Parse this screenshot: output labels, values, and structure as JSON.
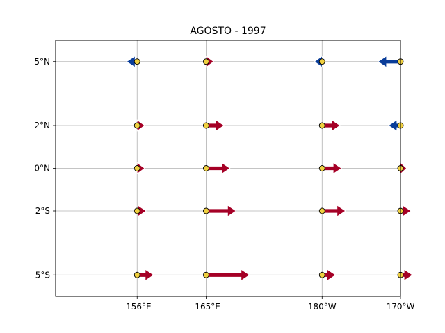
{
  "chart_data": {
    "type": "quiver",
    "title": "AGOSTO - 1997",
    "xlabel": "",
    "ylabel": "",
    "grid": true,
    "xlim": [
      -159,
      -148
    ],
    "ylim": [
      -6,
      6
    ],
    "x_ticks": [
      {
        "value": -156.4,
        "label": "-156°E"
      },
      {
        "value": -154.2,
        "label": "-165°E"
      },
      {
        "value": -150.5,
        "label": "180°W"
      },
      {
        "value": -148,
        "label": "170°W"
      }
    ],
    "y_ticks": [
      {
        "value": 5,
        "label": "5°N"
      },
      {
        "value": 2,
        "label": "2°N"
      },
      {
        "value": 0,
        "label": "0°N"
      },
      {
        "value": -2,
        "label": "2°S"
      },
      {
        "value": -5,
        "label": "5°S"
      }
    ],
    "colors": {
      "eastward": "#a50026",
      "westward": "#0a3d99",
      "station_marker": "#f0d040",
      "grid": "#b0b0b0"
    },
    "vectors": [
      {
        "x": -156.4,
        "y": 5,
        "u": -0.35
      },
      {
        "x": -154.2,
        "y": 5,
        "u": 0.25
      },
      {
        "x": -150.5,
        "y": 5,
        "u": -0.25
      },
      {
        "x": -148,
        "y": 5,
        "u": -0.75
      },
      {
        "x": -156.4,
        "y": 2,
        "u": 0.25
      },
      {
        "x": -154.2,
        "y": 2,
        "u": 0.6
      },
      {
        "x": -150.5,
        "y": 2,
        "u": 0.6
      },
      {
        "x": -148,
        "y": 2,
        "u": -0.4
      },
      {
        "x": -156.4,
        "y": 0,
        "u": 0.25
      },
      {
        "x": -154.2,
        "y": 0,
        "u": 0.8
      },
      {
        "x": -150.5,
        "y": 0,
        "u": 0.65
      },
      {
        "x": -148,
        "y": 0,
        "u": 0.2
      },
      {
        "x": -156.4,
        "y": -2,
        "u": 0.3
      },
      {
        "x": -154.2,
        "y": -2,
        "u": 1.0
      },
      {
        "x": -150.5,
        "y": -2,
        "u": 0.78
      },
      {
        "x": -148,
        "y": -2,
        "u": 0.35
      },
      {
        "x": -156.4,
        "y": -5,
        "u": 0.55
      },
      {
        "x": -154.2,
        "y": -5,
        "u": 1.45
      },
      {
        "x": -150.5,
        "y": -5,
        "u": 0.45
      },
      {
        "x": -148,
        "y": -5,
        "u": 0.4
      }
    ]
  }
}
